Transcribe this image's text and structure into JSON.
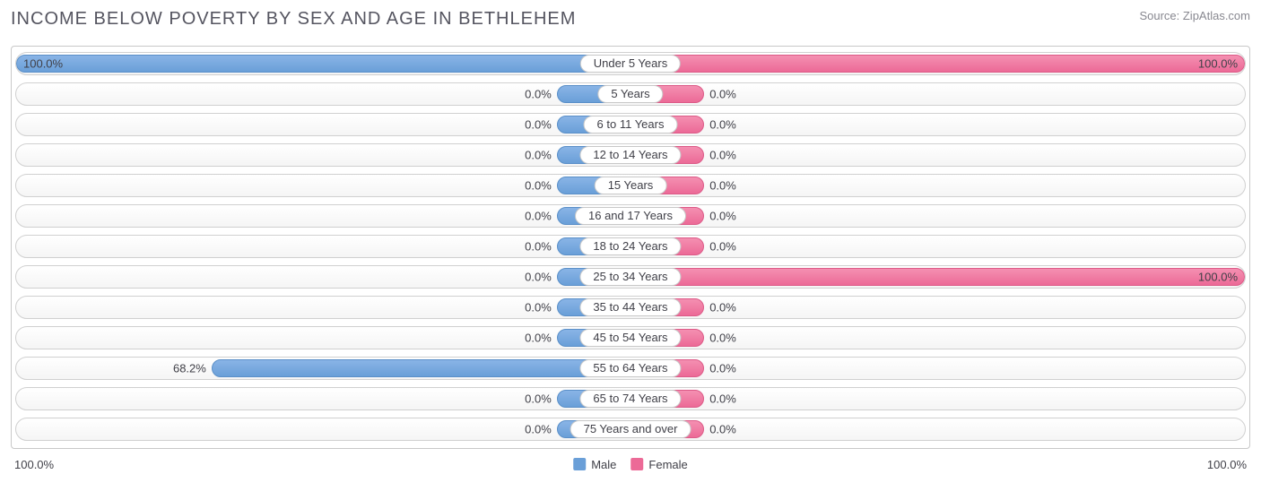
{
  "title": "INCOME BELOW POVERTY BY SEX AND AGE IN BETHLEHEM",
  "source_prefix": "Source: ",
  "source_name": "ZipAtlas.com",
  "chart": {
    "type": "diverging-bar",
    "male_color": "#6a9fd8",
    "male_color_light": "#89b4e6",
    "male_border": "#5a8fc8",
    "female_color": "#ec6a97",
    "female_color_light": "#f48fb1",
    "female_border": "#dc5a87",
    "track_bg_top": "#ffffff",
    "track_bg_bottom": "#f5f5f5",
    "track_border": "#d0d0d0",
    "pill_bg": "#ffffff",
    "pill_border": "#c8c8c8",
    "text_color": "#404048",
    "min_bar_pct": 12.0,
    "axis_left_label": "100.0%",
    "axis_right_label": "100.0%",
    "legend": {
      "male": "Male",
      "female": "Female"
    },
    "rows": [
      {
        "category": "Under 5 Years",
        "male": 100.0,
        "female": 100.0,
        "male_label": "100.0%",
        "female_label": "100.0%"
      },
      {
        "category": "5 Years",
        "male": 0.0,
        "female": 0.0,
        "male_label": "0.0%",
        "female_label": "0.0%"
      },
      {
        "category": "6 to 11 Years",
        "male": 0.0,
        "female": 0.0,
        "male_label": "0.0%",
        "female_label": "0.0%"
      },
      {
        "category": "12 to 14 Years",
        "male": 0.0,
        "female": 0.0,
        "male_label": "0.0%",
        "female_label": "0.0%"
      },
      {
        "category": "15 Years",
        "male": 0.0,
        "female": 0.0,
        "male_label": "0.0%",
        "female_label": "0.0%"
      },
      {
        "category": "16 and 17 Years",
        "male": 0.0,
        "female": 0.0,
        "male_label": "0.0%",
        "female_label": "0.0%"
      },
      {
        "category": "18 to 24 Years",
        "male": 0.0,
        "female": 0.0,
        "male_label": "0.0%",
        "female_label": "0.0%"
      },
      {
        "category": "25 to 34 Years",
        "male": 0.0,
        "female": 100.0,
        "male_label": "0.0%",
        "female_label": "100.0%"
      },
      {
        "category": "35 to 44 Years",
        "male": 0.0,
        "female": 0.0,
        "male_label": "0.0%",
        "female_label": "0.0%"
      },
      {
        "category": "45 to 54 Years",
        "male": 0.0,
        "female": 0.0,
        "male_label": "0.0%",
        "female_label": "0.0%"
      },
      {
        "category": "55 to 64 Years",
        "male": 68.2,
        "female": 0.0,
        "male_label": "68.2%",
        "female_label": "0.0%"
      },
      {
        "category": "65 to 74 Years",
        "male": 0.0,
        "female": 0.0,
        "male_label": "0.0%",
        "female_label": "0.0%"
      },
      {
        "category": "75 Years and over",
        "male": 0.0,
        "female": 0.0,
        "male_label": "0.0%",
        "female_label": "0.0%"
      }
    ]
  }
}
